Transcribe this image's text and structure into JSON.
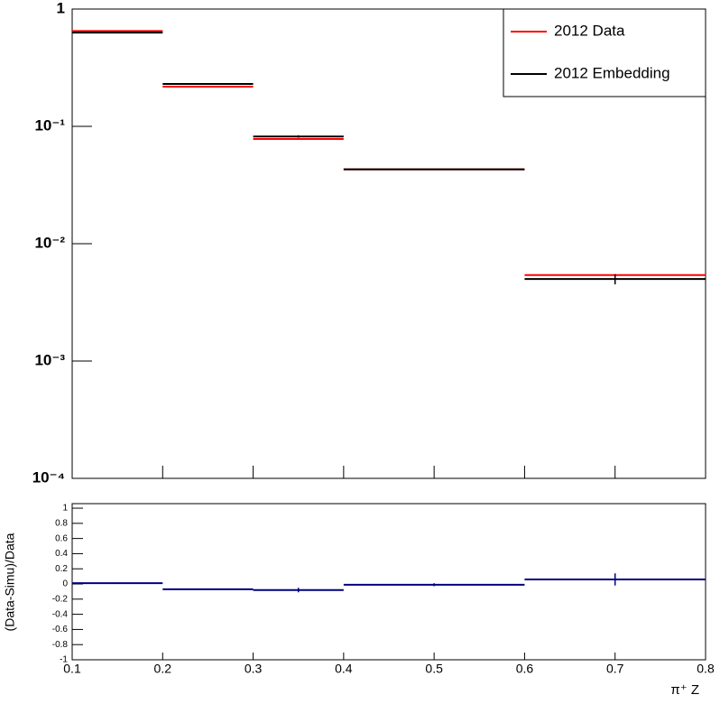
{
  "chart_data": [
    {
      "type": "histogram",
      "log_y": true,
      "legend": "top-right",
      "bins": [
        0.1,
        0.2,
        0.3,
        0.4,
        0.6,
        0.8
      ],
      "xlim": [
        0.1,
        0.8
      ],
      "ylim": [
        0.0001,
        1
      ],
      "yticks": [
        {
          "value": 1,
          "label": "1"
        },
        {
          "value": 0.1,
          "label": "10⁻¹"
        },
        {
          "value": 0.01,
          "label": "10⁻²"
        },
        {
          "value": 0.001,
          "label": "10⁻³"
        },
        {
          "value": 0.0001,
          "label": "10⁻⁴"
        }
      ],
      "series": [
        {
          "name": "2012 Data",
          "color": "#ff0000",
          "values": [
            0.65,
            0.218,
            0.078,
            0.043,
            0.0054
          ]
        },
        {
          "name": "2012 Embedding",
          "color": "#000000",
          "values": [
            0.63,
            0.23,
            0.082,
            0.043,
            0.005
          ],
          "errors": [
            0.008,
            0.003,
            0.002,
            0.0006,
            0.0005
          ]
        }
      ]
    },
    {
      "type": "histogram",
      "bins": [
        0.1,
        0.2,
        0.3,
        0.4,
        0.6,
        0.8
      ],
      "xlabel": "π⁺ Z",
      "ylabel": "(Data-Simu)/Data",
      "xlim": [
        0.1,
        0.8
      ],
      "ylim": [
        -1,
        1.06
      ],
      "xticks": [
        0.1,
        0.2,
        0.3,
        0.4,
        0.5,
        0.6,
        0.7,
        0.8
      ],
      "yticks": [
        -1,
        -0.8,
        -0.6,
        -0.4,
        -0.2,
        0,
        0.2,
        0.4,
        0.6,
        0.8,
        1
      ],
      "color": "#000080",
      "values": [
        0.01,
        -0.07,
        -0.08,
        -0.01,
        0.06
      ],
      "errors": [
        0.01,
        0.01,
        0.03,
        0.02,
        0.08
      ]
    }
  ]
}
